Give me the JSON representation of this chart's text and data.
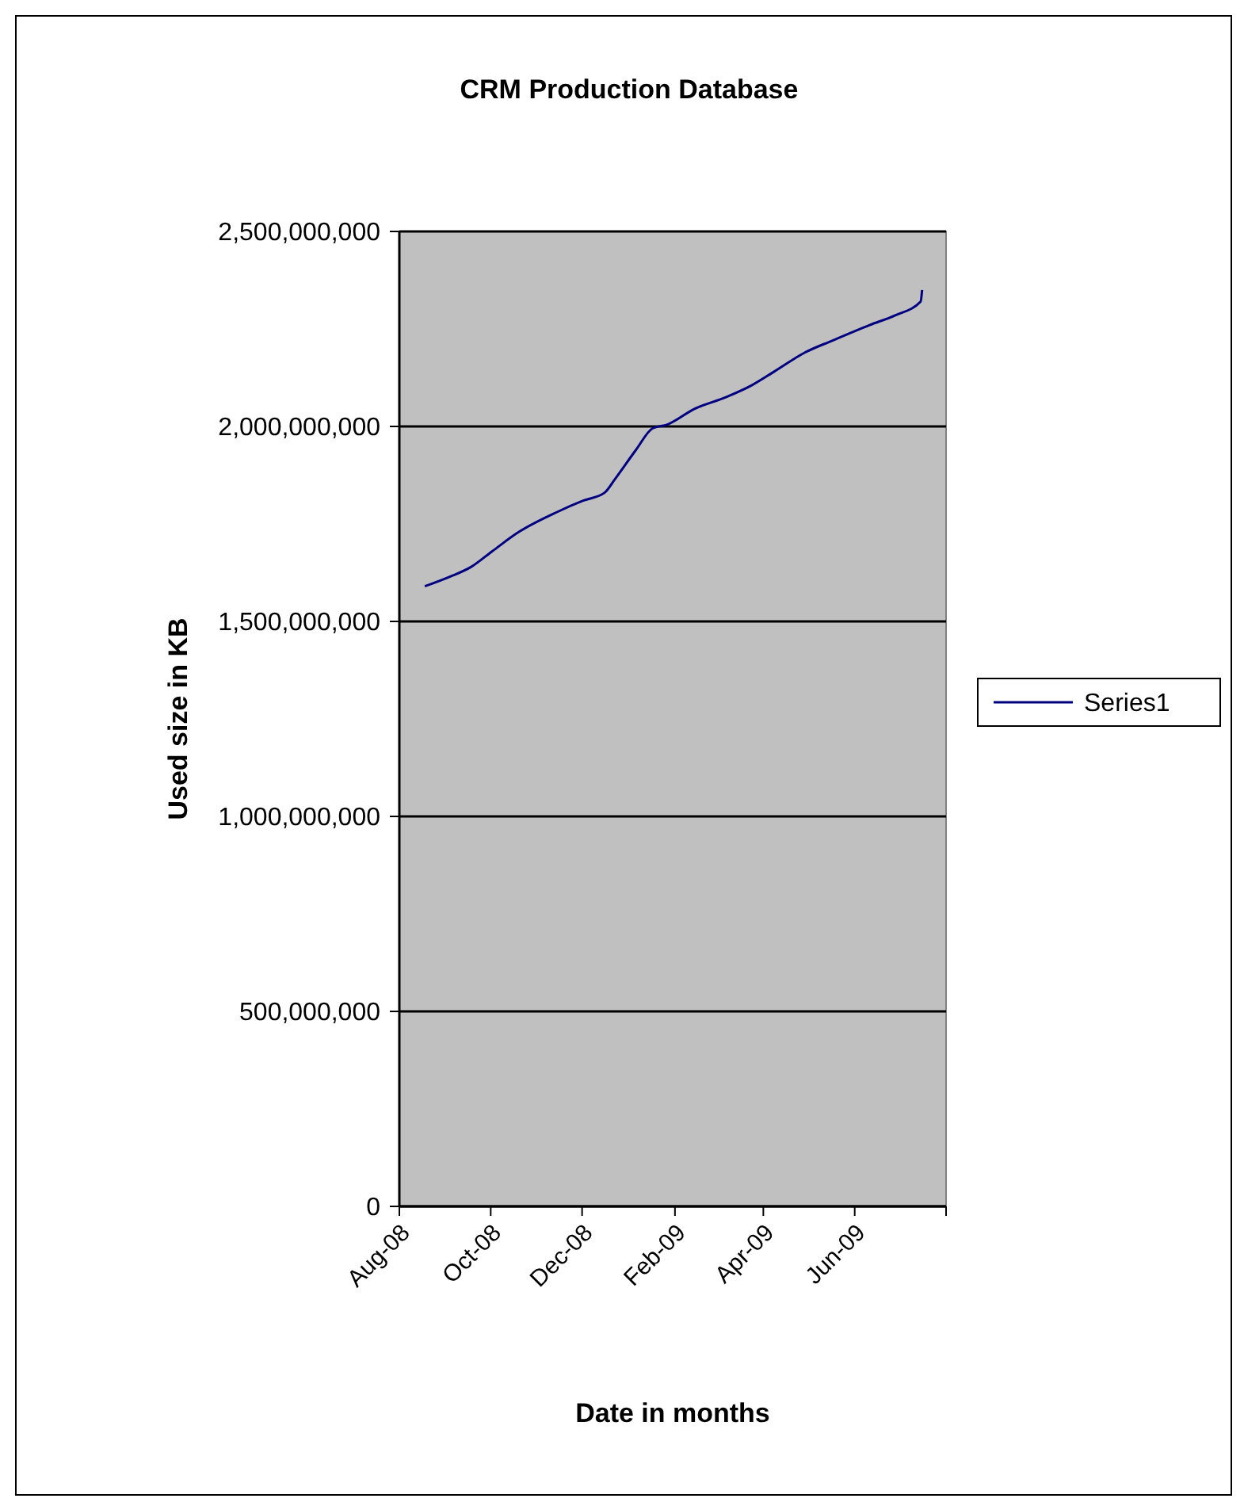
{
  "chart_data": {
    "type": "line",
    "title": "CRM Production Database",
    "xlabel": "Date in months",
    "ylabel": "Used size in KB",
    "x": [
      "2008-08-18",
      "2008-09-04",
      "2008-09-18",
      "2008-10-02",
      "2008-10-20",
      "2008-11-14",
      "2008-12-02",
      "2008-12-16",
      "2008-12-23",
      "2009-01-06",
      "2009-01-17",
      "2009-01-27",
      "2009-02-14",
      "2009-03-07",
      "2009-03-24",
      "2009-04-08",
      "2009-04-29",
      "2009-05-17",
      "2009-06-11",
      "2009-06-28",
      "2009-07-15",
      "2009-07-16"
    ],
    "series": [
      {
        "name": "Series1",
        "color": "#000080",
        "values": [
          1590000000,
          1615000000,
          1640000000,
          1680000000,
          1730000000,
          1780000000,
          1810000000,
          1830000000,
          1865000000,
          1940000000,
          1995000000,
          2005000000,
          2045000000,
          2075000000,
          2105000000,
          2140000000,
          2190000000,
          2220000000,
          2260000000,
          2285000000,
          2320000000,
          2350000000
        ]
      }
    ],
    "xlim": [
      "2008-08-01",
      "2009-08-01"
    ],
    "xticks": [
      {
        "value": "2008-08-01",
        "label": "Aug-08"
      },
      {
        "value": "2008-10-01",
        "label": "Oct-08"
      },
      {
        "value": "2008-12-01",
        "label": "Dec-08"
      },
      {
        "value": "2009-02-01",
        "label": "Feb-09"
      },
      {
        "value": "2009-04-01",
        "label": "Apr-09"
      },
      {
        "value": "2009-06-01",
        "label": "Jun-09"
      },
      {
        "value": "2009-08-01",
        "label": null
      }
    ],
    "ylim": [
      0,
      2500000000
    ],
    "yticks": [
      {
        "value": 0,
        "label": "0"
      },
      {
        "value": 500000000,
        "label": "500,000,000"
      },
      {
        "value": 1000000000,
        "label": "1,000,000,000"
      },
      {
        "value": 1500000000,
        "label": "1,500,000,000"
      },
      {
        "value": 2000000000,
        "label": "2,000,000,000"
      },
      {
        "value": 2500000000,
        "label": "2,500,000,000"
      }
    ],
    "grid": "y",
    "legend": "right",
    "marker": "none",
    "line_style": "solid"
  }
}
